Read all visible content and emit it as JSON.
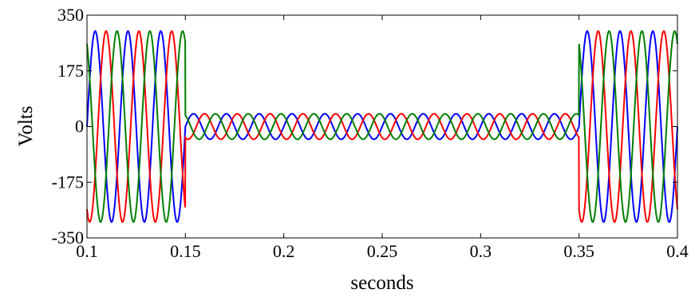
{
  "chart_data": {
    "type": "line",
    "title": "",
    "xlabel": "seconds",
    "ylabel": "Volts",
    "xlim": [
      0.1,
      0.4
    ],
    "ylim": [
      -350,
      350
    ],
    "xticks": [
      0.1,
      0.15,
      0.2,
      0.25,
      0.3,
      0.35,
      0.4
    ],
    "xtick_labels": [
      "0.1",
      "0.15",
      "0.2",
      "0.25",
      "0.3",
      "0.35",
      "0.4"
    ],
    "yticks": [
      350,
      175,
      0,
      -175,
      -350
    ],
    "ytick_labels": [
      "350",
      "175",
      "0",
      "-175",
      "-350"
    ],
    "grid": false,
    "legend": "none",
    "frequency_hz": 60,
    "segments": [
      {
        "t_start": 0.1,
        "t_end": 0.15,
        "amplitude": 300
      },
      {
        "t_start": 0.15,
        "t_end": 0.35,
        "amplitude": 40
      },
      {
        "t_start": 0.35,
        "t_end": 0.4,
        "amplitude": 300
      }
    ],
    "series": [
      {
        "phase_deg": 0,
        "color": "#0000ff"
      },
      {
        "phase_deg": -120,
        "color": "#ff0000"
      },
      {
        "phase_deg": 120,
        "color": "#007f00"
      }
    ]
  }
}
